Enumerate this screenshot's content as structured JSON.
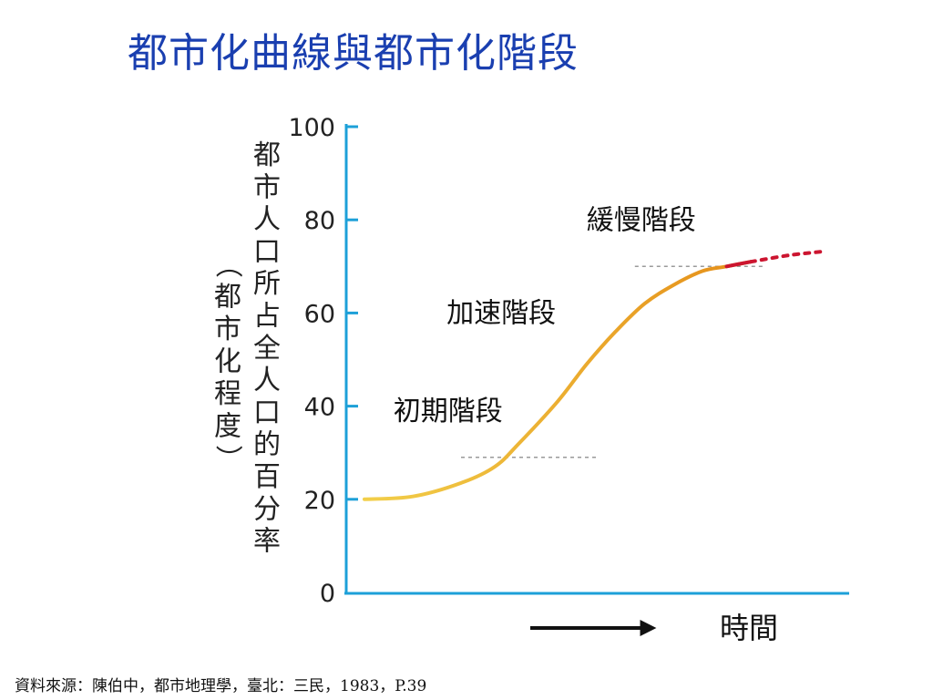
{
  "title": "都市化曲線與都市化階段",
  "source": "資料來源：陳伯中，都市地理學，臺北：三民，1983，P.39",
  "colors": {
    "title": "#1a3fb0",
    "axis": "#1da0d8",
    "curve_start": "#f2cf4a",
    "curve_end": "#e6931c",
    "curve_late": "#cc1530",
    "threshold": "#9a9a9a"
  },
  "chart_data": {
    "type": "line",
    "ylabel_main": "都市人口所占全人口的百分率",
    "ylabel_paren": "（都市化程度）",
    "xlabel": "時間",
    "ylim": [
      0,
      100
    ],
    "yticks": [
      0,
      20,
      40,
      60,
      80,
      100
    ],
    "xlim": [
      0,
      100
    ],
    "grid": false,
    "series": [
      {
        "x": [
          0,
          10,
          20,
          27,
          32,
          40,
          46,
          52,
          58,
          64,
          70,
          75,
          80
        ],
        "values": [
          20,
          20.6,
          23.5,
          27,
          32,
          41,
          49,
          56,
          62,
          66,
          69,
          70,
          71
        ]
      },
      {
        "style": "dashed",
        "x": [
          75,
          80,
          88,
          95
        ],
        "values": [
          70,
          71,
          72.4,
          73.2
        ]
      }
    ],
    "thresholds": [
      {
        "value": 29,
        "x_range": [
          20,
          48
        ]
      },
      {
        "value": 70,
        "x_range": [
          56,
          83
        ]
      }
    ],
    "annotations": [
      {
        "text": "初期階段",
        "x": 6,
        "y": 37
      },
      {
        "text": "加速階段",
        "x": 17,
        "y": 58
      },
      {
        "text": "緩慢階段",
        "x": 46,
        "y": 78
      }
    ]
  }
}
